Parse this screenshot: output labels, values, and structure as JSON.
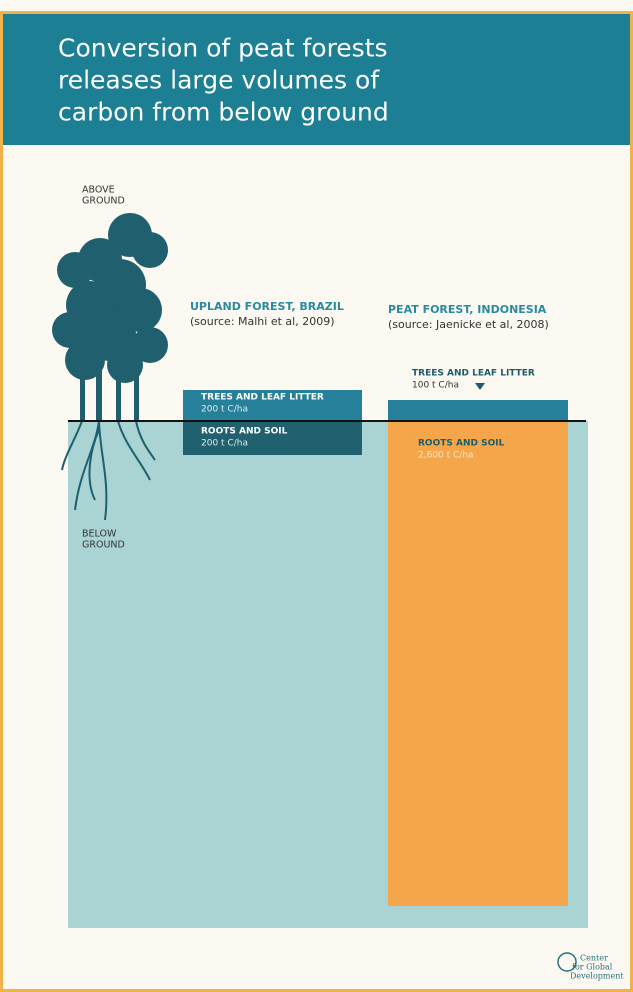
{
  "header": {
    "title_lines": [
      "Conversion of peat forests",
      "releases large volumes of",
      "carbon from below ground"
    ]
  },
  "labels": {
    "above": [
      "ABOVE",
      "GROUND"
    ],
    "below": [
      "BELOW",
      "GROUND"
    ]
  },
  "upland": {
    "title": "UPLAND FOREST, BRAZIL",
    "source": "(source: Malhi et al, 2009)",
    "trees": {
      "label": "TREES AND LEAF LITTER",
      "amount": "200 t C/ha"
    },
    "roots": {
      "label": "ROOTS AND SOIL",
      "amount": "200 t C/ha"
    }
  },
  "peat": {
    "title": "PEAT FOREST, INDONESIA",
    "source": "(source: Jaenicke et al, 2008)",
    "trees": {
      "label": "TREES AND LEAF LITTER",
      "amount": "100 t C/ha"
    },
    "roots": {
      "label": "ROOTS AND SOIL",
      "amount": "2,600 t C/ha"
    }
  },
  "logo": [
    "Center",
    "for Global",
    "Development"
  ]
}
